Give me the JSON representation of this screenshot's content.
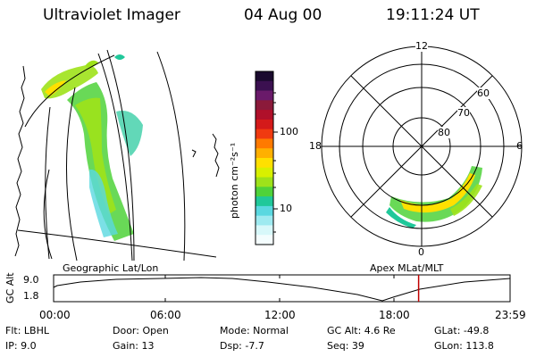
{
  "header": {
    "instrument": "Ultraviolet Imager",
    "date": "04 Aug 00",
    "time": "19:11:24 UT"
  },
  "colorbar": {
    "label": "photon cm⁻²s⁻¹",
    "tick_top": "100",
    "tick_bottom": "10",
    "colors": [
      "#1a0a2e",
      "#3b1050",
      "#6a1a6a",
      "#8b1a3a",
      "#b0102a",
      "#d41a1a",
      "#f03a10",
      "#ff7a00",
      "#ffb000",
      "#ffe000",
      "#d8f000",
      "#9ee21a",
      "#4fd23a",
      "#20c89a",
      "#5ad8e0",
      "#9eeaf0",
      "#d8f8fa",
      "#f4fdfe"
    ]
  },
  "polar": {
    "mlt_labels": {
      "top": "12",
      "left": "18",
      "right": "6",
      "bottom": "0"
    },
    "lat_labels": [
      "60",
      "70",
      "80"
    ]
  },
  "timeline": {
    "left_label": "Geographic Lat/Lon",
    "right_label": "Apex MLat/MLT",
    "axis_title": "GC Alt",
    "y_top": "9.0",
    "y_bottom": "1.8",
    "x_ticks": [
      "00:00",
      "06:00",
      "12:00",
      "18:00",
      "23:59"
    ],
    "current_time_hours": 19.19
  },
  "info": {
    "filter": "Flt: LBHL",
    "ip": "IP:  9.0",
    "door": "Door: Open",
    "gain": "Gain: 13",
    "mode": "Mode: Normal",
    "dsp": "Dsp:    -7.7",
    "gc_alt": "GC Alt: 4.6 Re",
    "seq": "Seq: 39",
    "glat": "GLat: -49.8",
    "glon": "GLon: 113.8"
  }
}
